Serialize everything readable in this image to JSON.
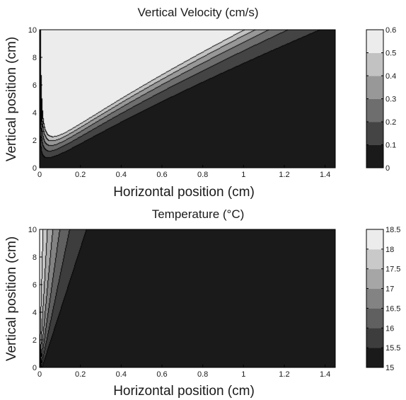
{
  "chart_data": [
    {
      "type": "heatmap",
      "subtype": "filled-contour",
      "title": "Vertical Velocity (cm/s)",
      "xlabel": "Horizontal position (cm)",
      "ylabel": "Vertical position (cm)",
      "xlim": [
        0,
        1.45
      ],
      "ylim": [
        0,
        10
      ],
      "xticks": [
        "0",
        "0.2",
        "0.4",
        "0.6",
        "0.8",
        "1",
        "1.2",
        "1.4"
      ],
      "yticks": [
        "0",
        "2",
        "4",
        "6",
        "8",
        "10"
      ],
      "colorbar": {
        "range": [
          0,
          0.6
        ],
        "ticks": [
          "0",
          "0.1",
          "0.2",
          "0.3",
          "0.4",
          "0.5",
          "0.6"
        ],
        "colormap": "gray"
      },
      "contour_levels": [
        0,
        0.1,
        0.2,
        0.3,
        0.4,
        0.5,
        0.6
      ],
      "field": {
        "form": "v = A * x * y * exp(-x / L(y))",
        "A": 9.2,
        "L": {
          "at_y0": 0.03,
          "slope_per_cm": 0.0163
        }
      }
    },
    {
      "type": "heatmap",
      "subtype": "filled-contour",
      "title": "Temperature (°C)",
      "xlabel": "Horizontal position (cm)",
      "ylabel": "Vertical position (cm)",
      "xlim": [
        0,
        1.45
      ],
      "ylim": [
        0,
        10
      ],
      "xticks": [
        "0",
        "0.2",
        "0.4",
        "0.6",
        "0.8",
        "1",
        "1.2",
        "1.4"
      ],
      "yticks": [
        "0",
        "2",
        "4",
        "6",
        "8",
        "10"
      ],
      "colorbar": {
        "range": [
          15,
          18.5
        ],
        "ticks": [
          "15",
          "15.5",
          "16",
          "16.5",
          "17",
          "17.5",
          "18",
          "18.5"
        ],
        "colormap": "gray"
      },
      "contour_levels": [
        15,
        15.5,
        16,
        16.5,
        17,
        17.5,
        18,
        18.5
      ],
      "field": {
        "form": "T = 15 + 3.5 * exp(-x / L(y))",
        "L": {
          "at_y0": 0.007,
          "slope_per_cm": 0.0112
        }
      }
    }
  ]
}
